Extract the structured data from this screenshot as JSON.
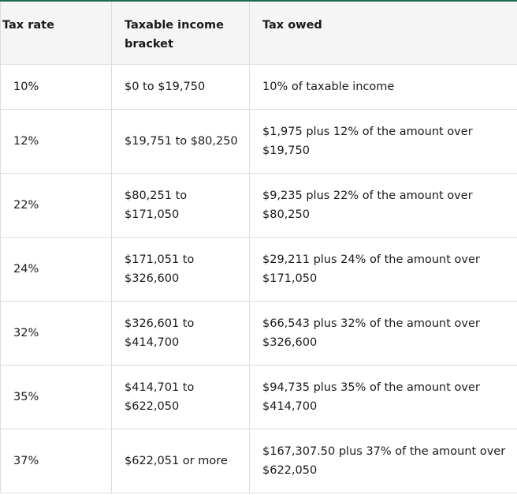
{
  "table": {
    "header": [
      "Tax rate",
      "Taxable income bracket",
      "Tax owed"
    ],
    "rows": [
      [
        "10%",
        "$0 to $19,750",
        "10% of taxable income"
      ],
      [
        "12%",
        "$19,751 to $80,250",
        "$1,975 plus 12% of the amount over $19,750"
      ],
      [
        "22%",
        "$80,251 to $171,050",
        "$9,235 plus 22% of the amount over $80,250"
      ],
      [
        "24%",
        "$171,051 to $326,600",
        "$29,211 plus 24% of the amount over $171,050"
      ],
      [
        "32%",
        "$326,601 to $414,700",
        "$66,543 plus 32% of the amount over $326,600"
      ],
      [
        "35%",
        "$414,701 to $622,050",
        "$94,735 plus 35% of the amount over $414,700"
      ],
      [
        "37%",
        "$622,051 or more",
        "$167,307.50 plus 37% of the amount over $622,050"
      ]
    ]
  }
}
